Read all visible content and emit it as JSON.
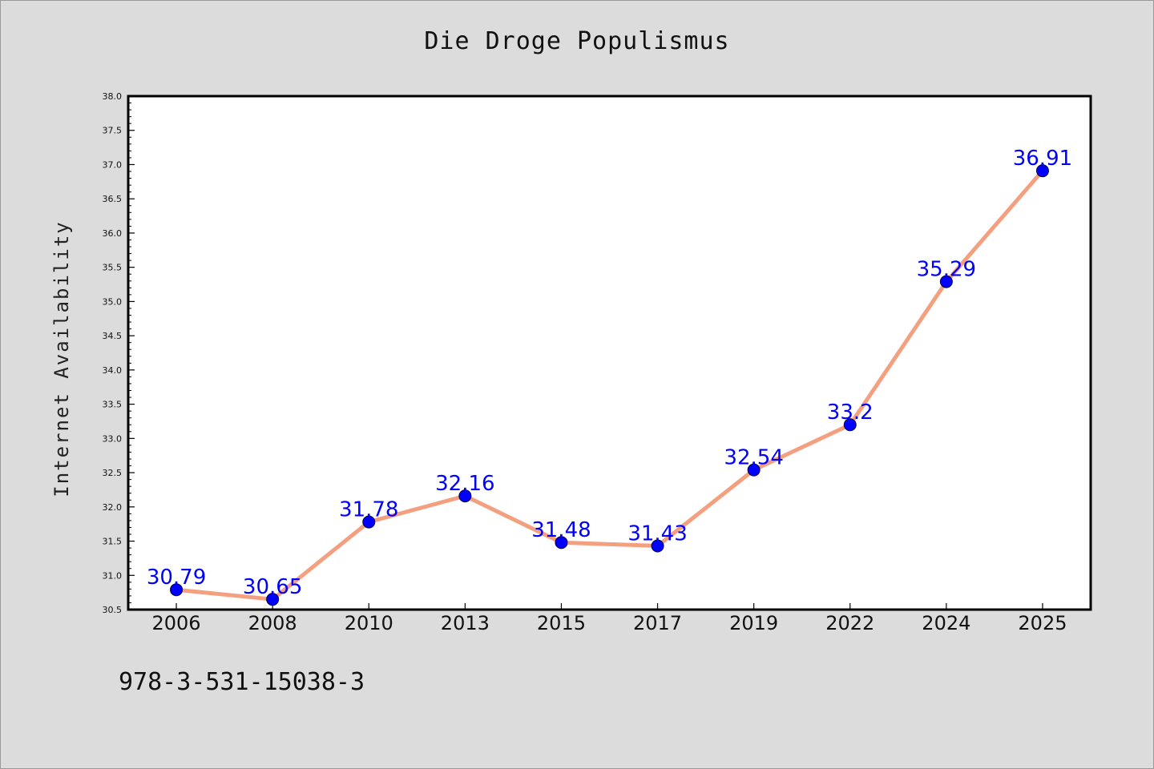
{
  "chart_data": {
    "type": "line",
    "title": "Die Droge Populismus",
    "xlabel": "",
    "ylabel": "Internet Availability",
    "categories": [
      "2006",
      "2008",
      "2010",
      "2013",
      "2015",
      "2017",
      "2019",
      "2022",
      "2024",
      "2025"
    ],
    "series": [
      {
        "values": [
          30.79,
          30.65,
          31.78,
          32.16,
          31.48,
          31.43,
          32.54,
          33.2,
          35.29,
          36.91
        ],
        "value_labels": [
          "30.79",
          "30.65",
          "31.78",
          "32.16",
          "31.48",
          "31.43",
          "32.54",
          "33.2",
          "35.29",
          "36.91"
        ]
      }
    ],
    "ylim": [
      30.5,
      38.0
    ],
    "yticks": [
      "30.5",
      "31.0",
      "31.5",
      "32.0",
      "32.5",
      "33.0",
      "33.5",
      "34.0",
      "34.5",
      "35.0",
      "35.5",
      "36.0",
      "36.5",
      "37.0",
      "37.5",
      "38.0"
    ],
    "grid": false,
    "legend": "none",
    "colors": {
      "line": "#f4a080",
      "marker": "#0000ff",
      "label": "#0000ff",
      "background": "#dcdcdc",
      "plot_background": "#ffffff"
    }
  },
  "footer": {
    "isbn": "978-3-531-15038-3"
  }
}
